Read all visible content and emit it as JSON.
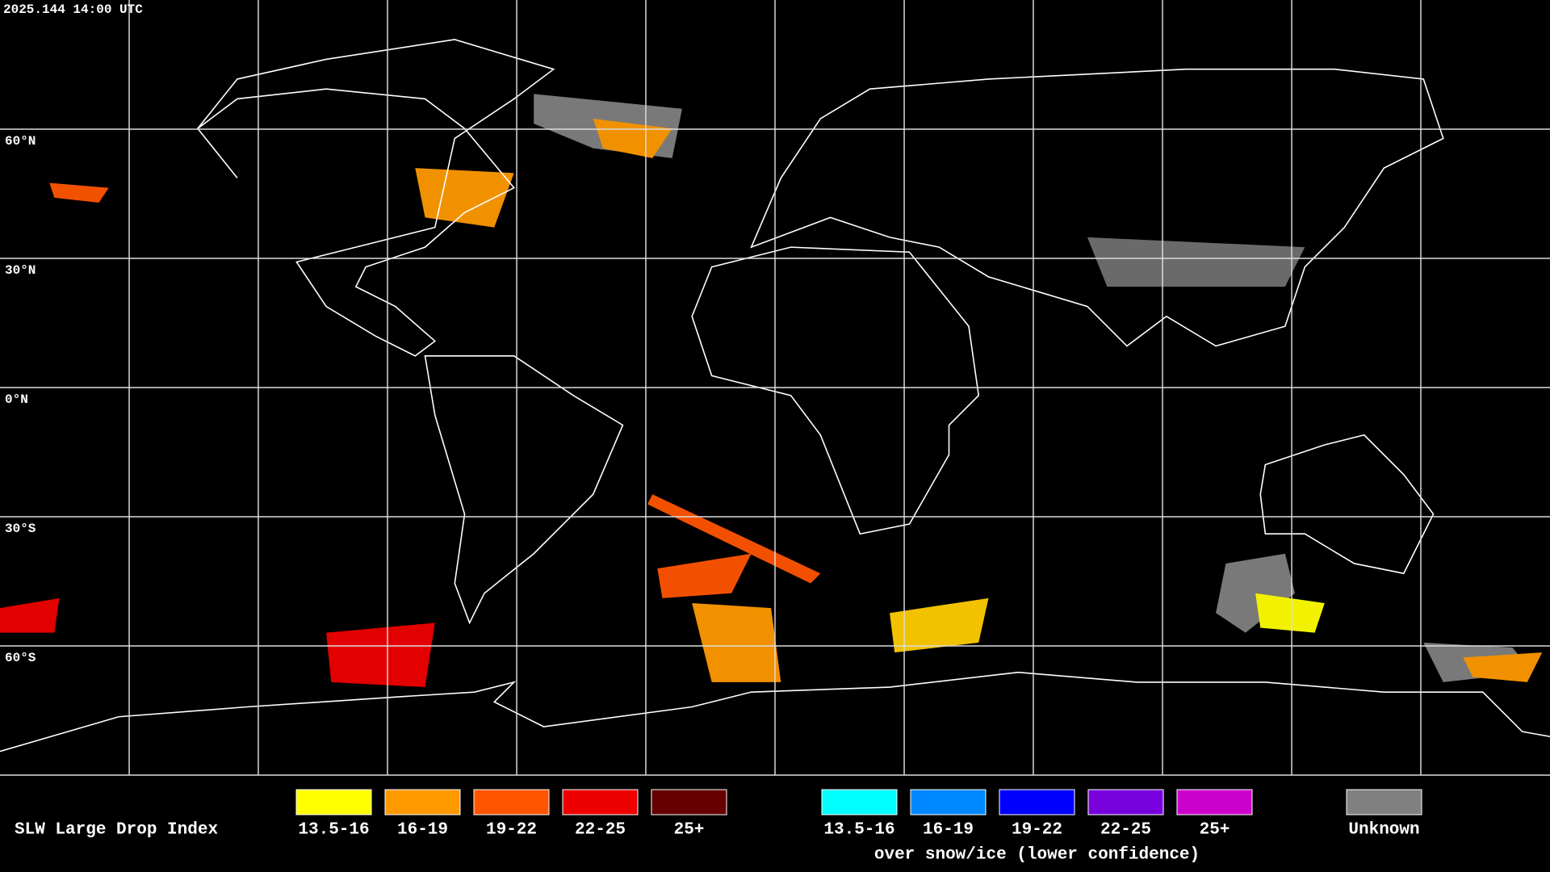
{
  "header": {
    "timestamp": "2025.144 14:00 UTC"
  },
  "map": {
    "latitude_labels": [
      "60°N",
      "30°N",
      "0°N",
      "30°S",
      "60°S"
    ]
  },
  "legend": {
    "title": "SLW Large Drop Index",
    "groups": [
      {
        "items": [
          {
            "label": "13.5-16",
            "color": "#ffff00"
          },
          {
            "label": "16-19",
            "color": "#ff9900"
          },
          {
            "label": "19-22",
            "color": "#ff5500"
          },
          {
            "label": "22-25",
            "color": "#ee0000"
          },
          {
            "label": "25+",
            "color": "#660000"
          }
        ]
      },
      {
        "items": [
          {
            "label": "13.5-16",
            "color": "#00ffff"
          },
          {
            "label": "16-19",
            "color": "#0088ff"
          },
          {
            "label": "19-22",
            "color": "#0000ff"
          },
          {
            "label": "22-25",
            "color": "#7700dd"
          },
          {
            "label": "25+",
            "color": "#cc00cc"
          }
        ],
        "caption": "over snow/ice (lower confidence)"
      },
      {
        "items": [
          {
            "label": "Unknown",
            "color": "#808080"
          }
        ]
      }
    ]
  }
}
